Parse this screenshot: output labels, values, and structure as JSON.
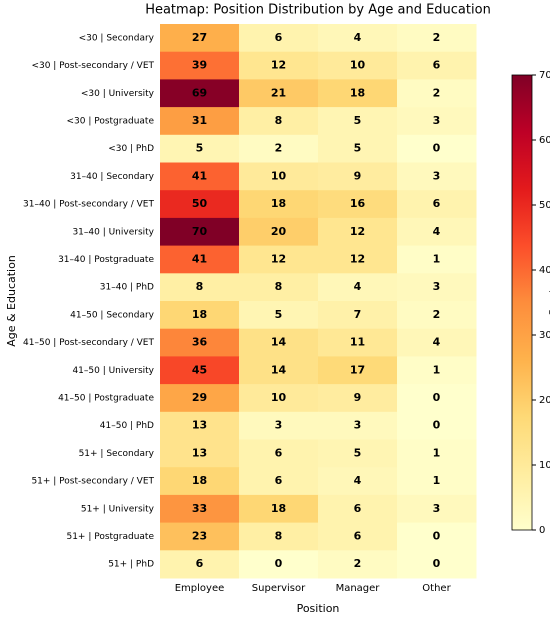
{
  "chart_data": {
    "type": "heatmap",
    "title": "Heatmap: Position Distribution by Age and Education",
    "x_label": "Position",
    "y_label": "Age & Education",
    "colorbar_label": "Count",
    "columns": [
      "Employee",
      "Supervisor",
      "Manager",
      "Other"
    ],
    "rows": [
      "<30 | Secondary",
      "<30 | Post-secondary / VET",
      "<30 | University",
      "<30 | Postgraduate",
      "<30 | PhD",
      "31–40 | Secondary",
      "31–40 | Post-secondary / VET",
      "31–40 | University",
      "31–40 | Postgraduate",
      "31–40 | PhD",
      "41–50 | Secondary",
      "41–50 | Post-secondary / VET",
      "41–50 | University",
      "41–50 | Postgraduate",
      "41–50 | PhD",
      "51+ | Secondary",
      "51+ | Post-secondary / VET",
      "51+ | University",
      "51+ | Postgraduate",
      "51+ | PhD"
    ],
    "values": [
      [
        27,
        6,
        4,
        2
      ],
      [
        39,
        12,
        10,
        6
      ],
      [
        69,
        21,
        18,
        2
      ],
      [
        31,
        8,
        5,
        3
      ],
      [
        5,
        2,
        5,
        0
      ],
      [
        41,
        10,
        9,
        3
      ],
      [
        50,
        18,
        16,
        6
      ],
      [
        70,
        20,
        12,
        4
      ],
      [
        41,
        12,
        12,
        1
      ],
      [
        8,
        8,
        4,
        3
      ],
      [
        18,
        5,
        7,
        2
      ],
      [
        36,
        14,
        11,
        4
      ],
      [
        45,
        14,
        17,
        1
      ],
      [
        29,
        10,
        9,
        0
      ],
      [
        13,
        3,
        3,
        0
      ],
      [
        13,
        6,
        5,
        1
      ],
      [
        18,
        6,
        4,
        1
      ],
      [
        33,
        18,
        6,
        3
      ],
      [
        23,
        8,
        6,
        0
      ],
      [
        6,
        0,
        2,
        0
      ]
    ],
    "colormap": [
      "#ffffcc",
      "#ffeda0",
      "#fed976",
      "#feb24c",
      "#fd8d3c",
      "#fc4e2a",
      "#e31a1c",
      "#bd0026",
      "#800026"
    ],
    "clim": [
      0,
      70
    ],
    "cticks": [
      0,
      10,
      20,
      30,
      40,
      50,
      60,
      70
    ]
  }
}
